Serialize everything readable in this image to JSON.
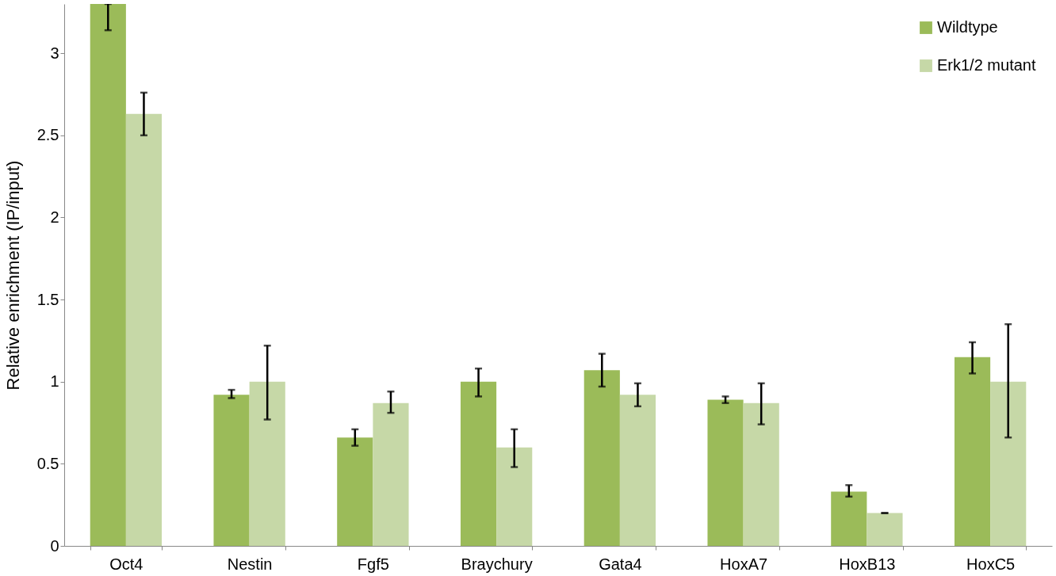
{
  "chart_data": {
    "type": "bar",
    "ylabel": "Relative enrichment (IP/input)",
    "categories": [
      "Oct4",
      "Nestin",
      "Fgf5",
      "Braychury",
      "Gata4",
      "HoxA7",
      "HoxB13",
      "HoxC5"
    ],
    "series": [
      {
        "name": "Wildtype",
        "color": "#9bbb59",
        "values": [
          3.3,
          0.92,
          0.66,
          1.0,
          1.07,
          0.89,
          0.33,
          1.15
        ],
        "errors": [
          [
            3.14,
            3.3
          ],
          [
            0.9,
            0.95
          ],
          [
            0.61,
            0.71
          ],
          [
            0.91,
            1.08
          ],
          [
            0.97,
            1.17
          ],
          [
            0.87,
            0.91
          ],
          [
            0.3,
            0.37
          ],
          [
            1.05,
            1.24
          ]
        ]
      },
      {
        "name": "Erk1/2 mutant",
        "color": "#c6d8a7",
        "values": [
          2.63,
          1.0,
          0.87,
          0.6,
          0.92,
          0.87,
          0.2,
          1.0
        ],
        "errors": [
          [
            2.5,
            2.76
          ],
          [
            0.77,
            1.22
          ],
          [
            0.81,
            0.94
          ],
          [
            0.48,
            0.71
          ],
          [
            0.85,
            0.99
          ],
          [
            0.74,
            0.99
          ],
          [
            0.2,
            0.2
          ],
          [
            0.66,
            1.35
          ]
        ]
      }
    ],
    "ylim": [
      0,
      3.3
    ],
    "yticks": [
      0,
      0.5,
      1,
      1.5,
      2,
      2.5,
      3
    ],
    "grid": false,
    "legend": "top right"
  }
}
